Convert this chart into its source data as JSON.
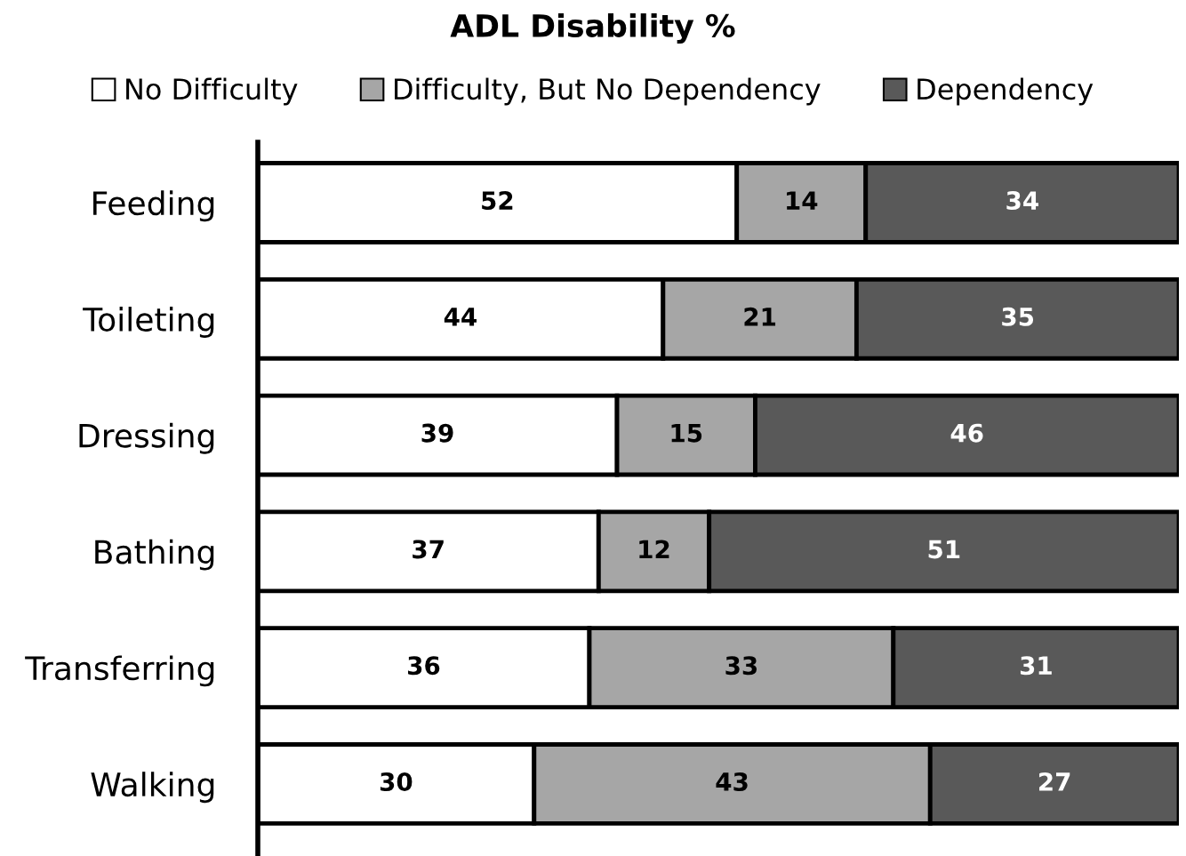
{
  "chart_data": {
    "type": "bar",
    "orientation": "horizontal",
    "stacked": true,
    "title": "ADL Disability %",
    "categories": [
      "Feeding",
      "Toileting",
      "Dressing",
      "Bathing",
      "Transferring",
      "Walking"
    ],
    "series": [
      {
        "name": "No Difficulty",
        "color": "#ffffff",
        "values": [
          52,
          44,
          39,
          37,
          36,
          30
        ]
      },
      {
        "name": "Difficulty, But No Dependency",
        "color": "#a6a6a6",
        "values": [
          14,
          21,
          15,
          12,
          33,
          43
        ]
      },
      {
        "name": "Dependency",
        "color": "#595959",
        "values": [
          34,
          35,
          46,
          51,
          31,
          27
        ]
      }
    ],
    "xlim": [
      0,
      100
    ],
    "tick_labels": "y",
    "data_labels": true,
    "legend": "top",
    "grid": false
  }
}
